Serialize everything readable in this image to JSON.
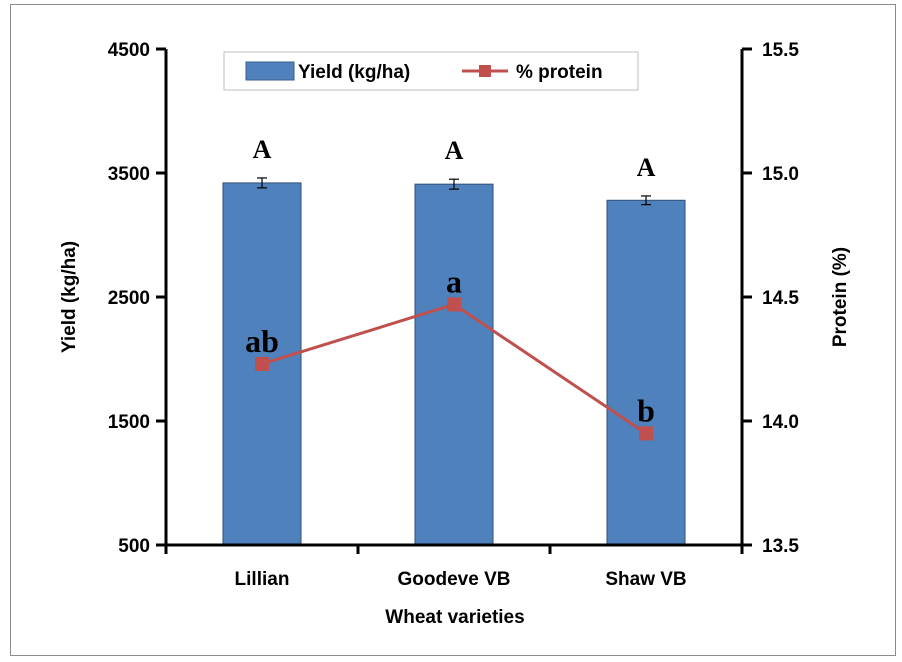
{
  "chart_data": {
    "type": "bar",
    "categories": [
      "Lillian",
      "Goodeve VB",
      "Shaw VB"
    ],
    "xlabel": "Wheat varieties",
    "ylabel": "Yield (kg/ha)",
    "y2label": "Protein (%)",
    "ylim": [
      500,
      4500
    ],
    "y2lim": [
      13.5,
      15.5
    ],
    "yticks": [
      "4500",
      "3500",
      "2500",
      "1500",
      "500"
    ],
    "y2ticks": [
      "15.5",
      "15.0",
      "14.5",
      "14.0",
      "13.5"
    ],
    "series": [
      {
        "name": "Yield (kg/ha)",
        "type": "bar",
        "axis": "left",
        "values": [
          3420,
          3410,
          3280
        ],
        "errors": [
          40,
          40,
          35
        ],
        "color": "#4f81bd",
        "significance": [
          "A",
          "A",
          "A"
        ]
      },
      {
        "name": "% protein",
        "type": "line",
        "axis": "right",
        "values": [
          14.23,
          14.47,
          13.95
        ],
        "color": "#c0504d",
        "significance": [
          "ab",
          "a",
          "b"
        ]
      }
    ],
    "legend": {
      "position": "top",
      "items": [
        "Yield (kg/ha)",
        "% protein"
      ]
    }
  }
}
